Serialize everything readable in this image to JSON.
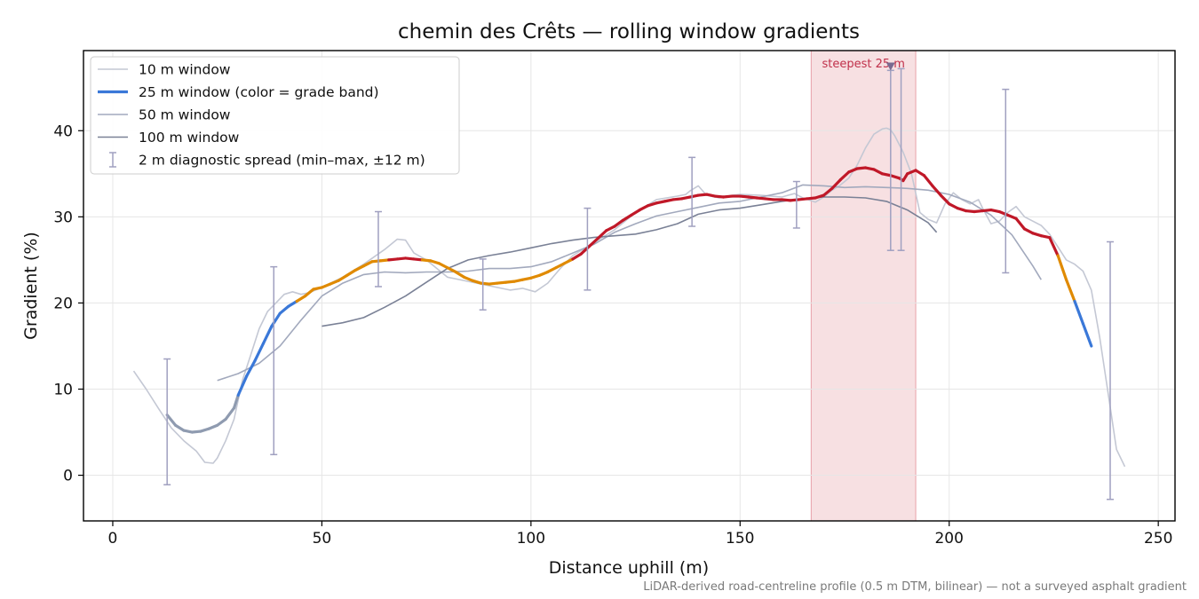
{
  "chart_data": {
    "type": "line",
    "title": "chemin des Crêts — rolling window gradients",
    "xlabel": "Distance uphill (m)",
    "ylabel": "Gradient (%)",
    "xlim": [
      -7,
      254
    ],
    "ylim": [
      -5.3,
      49.3
    ],
    "xticks": [
      0,
      50,
      100,
      150,
      200,
      250
    ],
    "yticks": [
      0,
      10,
      20,
      30,
      40
    ],
    "grid": true,
    "legend_position": "top-left",
    "footnote": "LiDAR-derived road-centreline profile (0.5 m DTM, bilinear) — not a surveyed asphalt gradient",
    "highlight": {
      "label": "steepest 25 m",
      "x_start": 167,
      "x_end": 192,
      "marker_x": 186,
      "marker_y": 47.5,
      "color": "#e8a0a8"
    },
    "grade_bands": [
      {
        "color": "#8f9bb0"
      },
      {
        "color": "#3a78d8"
      },
      {
        "color": "#e08a00"
      },
      {
        "color": "#c01828"
      }
    ],
    "series": [
      {
        "name": "10 m window",
        "color": "#c4c8d4",
        "x": [
          5,
          8,
          11,
          14,
          17,
          20,
          22,
          24,
          25,
          27,
          29,
          31,
          33,
          35,
          37,
          39,
          41,
          43,
          45,
          47,
          50,
          55,
          60,
          65,
          68,
          70,
          72,
          75,
          80,
          85,
          90,
          95,
          98,
          101,
          104,
          107,
          110,
          115,
          120,
          125,
          130,
          135,
          137,
          138,
          140,
          142,
          145,
          148,
          150,
          155,
          160,
          163,
          165,
          168,
          170,
          172,
          174,
          176,
          178,
          180,
          182,
          184,
          185,
          186,
          187,
          189,
          191,
          193,
          195,
          197,
          199,
          201,
          203,
          205,
          207,
          208,
          210,
          212,
          214,
          216,
          218,
          220,
          222,
          224,
          226,
          228,
          230,
          232,
          234,
          236,
          238,
          240,
          242
        ],
        "y": [
          12.1,
          10,
          7.7,
          5.5,
          4,
          2.8,
          1.5,
          1.4,
          2,
          4,
          6.5,
          11,
          14,
          17,
          19,
          20,
          21,
          21.3,
          21,
          21.2,
          21.8,
          23,
          24.5,
          26.2,
          27.4,
          27.3,
          25.8,
          25,
          23,
          22.5,
          22,
          21.5,
          21.7,
          21.3,
          22.3,
          24,
          25.5,
          27,
          28.5,
          30.5,
          32,
          32.4,
          32.6,
          33,
          33.6,
          32.5,
          32.2,
          32.5,
          32.6,
          32.5,
          32.3,
          32.7,
          32.2,
          31.7,
          32.3,
          33.1,
          33.7,
          34.5,
          36,
          38,
          39.6,
          40.2,
          40.3,
          40.1,
          39.4,
          37.5,
          35,
          30.5,
          29.7,
          29.3,
          31.5,
          32.8,
          32,
          31.5,
          32,
          31,
          29.2,
          29.5,
          30.5,
          31.2,
          30,
          29.5,
          29,
          28,
          26.5,
          25,
          24.5,
          23.7,
          21.5,
          16,
          9.5,
          3,
          1
        ]
      },
      {
        "name": "25 m window (color = grade band)",
        "color": "#3a78d8",
        "x": [
          13,
          15,
          17,
          19,
          21,
          23,
          25,
          27,
          29,
          30,
          32,
          34,
          36,
          38,
          40,
          42,
          44,
          46,
          48,
          50,
          52,
          54,
          56,
          58,
          60,
          62,
          64,
          66,
          68,
          70,
          72,
          74,
          76,
          78,
          80,
          82,
          84,
          86,
          88,
          90,
          92,
          94,
          96,
          98,
          100,
          102,
          104,
          106,
          108,
          110,
          112,
          114,
          116,
          118,
          120,
          122,
          124,
          126,
          128,
          130,
          132,
          134,
          136,
          138,
          140,
          142,
          144,
          146,
          148,
          150,
          152,
          154,
          156,
          158,
          160,
          162,
          164,
          166,
          168,
          170,
          172,
          174,
          176,
          178,
          180,
          182,
          184,
          186,
          188,
          189,
          190,
          192,
          194,
          196,
          198,
          200,
          202,
          204,
          206,
          208,
          210,
          212,
          214,
          216,
          218,
          220,
          222,
          224,
          226,
          228,
          230,
          232,
          234
        ],
        "y": [
          7,
          5.8,
          5.2,
          5,
          5.1,
          5.4,
          5.8,
          6.5,
          7.8,
          9.3,
          11.5,
          13.3,
          15.3,
          17.3,
          18.8,
          19.6,
          20.2,
          20.8,
          21.6,
          21.8,
          22.2,
          22.6,
          23.2,
          23.8,
          24.3,
          24.8,
          24.9,
          25,
          25.1,
          25.2,
          25.1,
          25,
          24.9,
          24.6,
          24.1,
          23.6,
          23,
          22.6,
          22.3,
          22.2,
          22.3,
          22.4,
          22.5,
          22.7,
          22.9,
          23.2,
          23.6,
          24.1,
          24.6,
          25.1,
          25.7,
          26.6,
          27.5,
          28.4,
          28.9,
          29.6,
          30.2,
          30.8,
          31.3,
          31.6,
          31.8,
          32,
          32.1,
          32.3,
          32.5,
          32.6,
          32.4,
          32.3,
          32.4,
          32.4,
          32.3,
          32.2,
          32.1,
          32,
          32,
          31.9,
          32,
          32.1,
          32.2,
          32.5,
          33.3,
          34.3,
          35.2,
          35.6,
          35.7,
          35.5,
          35,
          34.8,
          34.5,
          34.2,
          35,
          35.4,
          34.8,
          33.6,
          32.5,
          31.5,
          31,
          30.7,
          30.6,
          30.7,
          30.8,
          30.6,
          30.2,
          29.8,
          28.6,
          28.1,
          27.8,
          27.6,
          25.5,
          22.7,
          20.2,
          17.6,
          15
        ]
      },
      {
        "name": "50 m window",
        "color": "#a2a9bd",
        "x": [
          25,
          30,
          35,
          40,
          45,
          50,
          55,
          60,
          65,
          70,
          75,
          80,
          85,
          90,
          95,
          100,
          105,
          110,
          115,
          120,
          125,
          130,
          135,
          140,
          145,
          150,
          155,
          160,
          165,
          170,
          175,
          180,
          185,
          190,
          195,
          200,
          205,
          210,
          215,
          220,
          222
        ],
        "y": [
          11,
          11.8,
          13,
          15,
          18,
          20.8,
          22.3,
          23.3,
          23.6,
          23.5,
          23.6,
          23.6,
          23.7,
          24,
          24,
          24.2,
          24.8,
          25.8,
          26.8,
          28.2,
          29.2,
          30.1,
          30.6,
          31.1,
          31.6,
          31.8,
          32.3,
          32.8,
          33.7,
          33.6,
          33.4,
          33.5,
          33.4,
          33.3,
          33.1,
          32.6,
          31.7,
          30.2,
          27.9,
          24.3,
          22.7
        ]
      },
      {
        "name": "100 m window",
        "color": "#7a8196",
        "x": [
          50,
          55,
          60,
          65,
          70,
          75,
          80,
          85,
          90,
          95,
          100,
          105,
          110,
          115,
          120,
          125,
          130,
          135,
          140,
          145,
          150,
          155,
          160,
          165,
          170,
          175,
          180,
          185,
          190,
          195,
          197
        ],
        "y": [
          17.3,
          17.7,
          18.3,
          19.5,
          20.8,
          22.4,
          24,
          25,
          25.5,
          25.9,
          26.4,
          26.9,
          27.3,
          27.6,
          27.8,
          28,
          28.5,
          29.2,
          30.3,
          30.8,
          31,
          31.4,
          31.8,
          32.1,
          32.3,
          32.3,
          32.2,
          31.8,
          30.8,
          29.3,
          28.2
        ]
      }
    ],
    "error_bars": {
      "name": "2 m diagnostic spread (min–max, ±12 m)",
      "color": "#a0a0c0",
      "points": [
        {
          "x": 13,
          "min": -1.1,
          "max": 13.5
        },
        {
          "x": 38.5,
          "min": 2.4,
          "max": 24.2
        },
        {
          "x": 63.5,
          "min": 21.9,
          "max": 30.6
        },
        {
          "x": 88.5,
          "min": 19.2,
          "max": 25.1
        },
        {
          "x": 113.5,
          "min": 21.5,
          "max": 31
        },
        {
          "x": 138.5,
          "min": 28.9,
          "max": 36.9
        },
        {
          "x": 163.5,
          "min": 28.7,
          "max": 34.1
        },
        {
          "x": 186,
          "min": 26.1,
          "max": 47
        },
        {
          "x": 188.5,
          "min": 26.1,
          "max": 47.2
        },
        {
          "x": 213.5,
          "min": 23.5,
          "max": 44.8
        },
        {
          "x": 238.5,
          "min": -2.8,
          "max": 27.1
        }
      ]
    }
  }
}
